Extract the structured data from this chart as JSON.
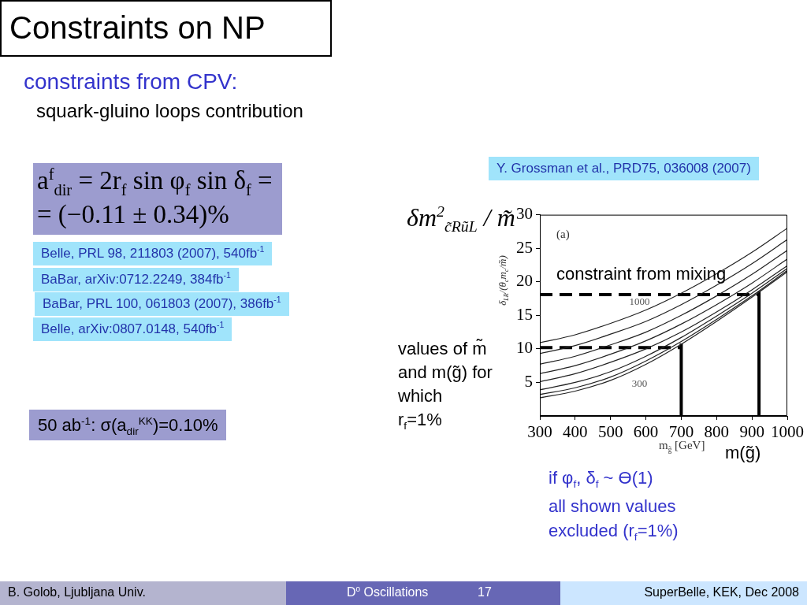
{
  "chart_data": {
    "type": "line",
    "title": "Constraints on NP",
    "subtitle": "constraints from CPV:",
    "xlabel": "m$_{g̃}$ [GeV]",
    "ylabel": "δ$_{LR}$/(θ$_{c}$m$_{c}$/m̃)",
    "x": [
      300,
      400,
      500,
      600,
      700,
      800,
      900,
      1000
    ],
    "xlim": [
      300,
      1000
    ],
    "xticks": [
      300,
      400,
      500,
      600,
      700,
      800,
      900,
      1000
    ],
    "ylim": [
      0,
      30
    ],
    "yticks": [
      5,
      10,
      15,
      20,
      25,
      30
    ],
    "marker": "none",
    "line_style": "solid",
    "series": [
      {
        "name": "1000",
        "color": "#222222",
        "values": [
          10.9,
          12.1,
          13.8,
          15.8,
          18.3,
          21.2,
          24.4,
          28
        ]
      },
      {
        "color": "#222222",
        "values": [
          9.3,
          10.5,
          12.2,
          14.1,
          16.6,
          19.5,
          22.7,
          26.3
        ]
      },
      {
        "color": "#222222",
        "values": [
          7.7,
          8.9,
          10.6,
          12.5,
          15,
          17.9,
          21.1,
          24.7
        ]
      },
      {
        "color": "#222222",
        "values": [
          6.3,
          7.5,
          9.2,
          11.2,
          13.7,
          16.6,
          19.8,
          23.4
        ]
      },
      {
        "color": "#222222",
        "values": [
          5.1,
          6.3,
          8,
          10,
          12.5,
          15.5,
          18.8,
          22.4
        ]
      },
      {
        "color": "#222222",
        "values": [
          3.9,
          5,
          6.6,
          8.9,
          11.7,
          14.9,
          18.3,
          22
        ]
      },
      {
        "color": "#222222",
        "values": [
          3.2,
          4.2,
          5.8,
          8.2,
          11.1,
          14.4,
          17.9,
          21.7
        ]
      },
      {
        "name": "300",
        "color": "#222222",
        "values": [
          2.7,
          3.7,
          5.3,
          7.7,
          10.7,
          14.1,
          17.7,
          21.5
        ]
      },
      {
        "x": [
          300,
          700
        ],
        "values": [
          10.2,
          10.2
        ],
        "color": "#000000",
        "line_style": "dashed"
      },
      {
        "x": [
          700,
          700
        ],
        "values": [
          0,
          10.8
        ],
        "color": "#000000"
      },
      {
        "x": [
          300,
          920
        ],
        "values": [
          18.1,
          18.1
        ],
        "color": "#000000",
        "line_style": "dashed"
      },
      {
        "x": [
          920,
          920
        ],
        "values": [
          0,
          18.6
        ],
        "color": "#000000"
      }
    ],
    "annotations": [
      "squark-gluino loops contribution",
      "a$^{f}$$_{dir}$ = 2r$_{f}$ sin φ$_{f}$ sin δ$_{f}$ =\n= (−0.11 ± 0.34)%",
      "Belle, PRL 98, 211803 (2007), 540fb$^{-1}$",
      "BaBar, arXiv:0712.2249, 384fb$^{-1}$",
      "BaBar, PRL 100, 061803 (2007), 386fb$^{-1}$",
      "Belle, arXiv:0807.0148, 540fb$^{-1}$",
      "50 ab$^{-1}$: σ(a$_{dir}$$^{KK}$)=0.10%",
      "Y. Grossman et al., PRD75, 036008 (2007)",
      "δm$^{2}$$_{c̃RũL}$ / m̃",
      "(a)",
      "constraint from mixing",
      "values of m̃ and m(g̃) for which\nr$_{f}$=1%",
      "m(g̃)",
      "if φ$_{f}$, δ$_{f}$ ~ ϴ(1)",
      "all shown values excluded (r$_{f}$=1%)",
      "B. Golob, Ljubljana Univ.",
      "D$^{0}$ Oscillations",
      "17",
      "SuperBelle, KEK, Dec 2008"
    ]
  }
}
